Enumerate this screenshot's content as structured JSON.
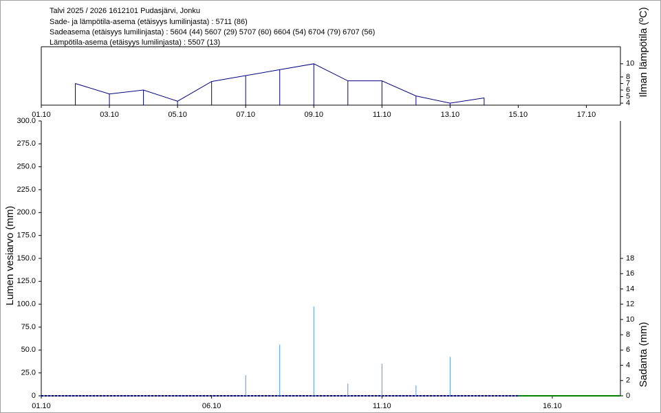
{
  "header": {
    "lines": [
      "Talvi 2025 / 2026 1612101 Pudasjärvi, Jonku",
      "Sade- ja lämpötila-asema (etäisyys lumilinjasta) :  5711 (86)",
      "Sadeasema (etäisyys lumilinjasta) :  5604 (44) 5607 (29) 5707 (60) 6604 (54) 6704 (79) 6707 (56)",
      "Lämpötila-asema (etäisyys lumilinjasta) :  5507 (13)"
    ]
  },
  "chart_data": [
    {
      "type": "line",
      "y_label": "Ilman lämpötila (ºC)",
      "color": "#000080",
      "x": [
        2,
        3,
        4,
        5,
        6,
        7,
        8,
        9,
        10,
        11,
        12,
        13,
        14
      ],
      "values": [
        7.0,
        5.4,
        6.0,
        4.3,
        7.3,
        8.2,
        9.1,
        10.0,
        7.4,
        7.4,
        5.1,
        4.0,
        4.8
      ],
      "xlim": [
        1,
        18
      ],
      "ylim": [
        3.7,
        12.6
      ],
      "xticks": [
        {
          "value": 1,
          "label": "01.10"
        },
        {
          "value": 3,
          "label": "03.10"
        },
        {
          "value": 5,
          "label": "05.10"
        },
        {
          "value": 7,
          "label": "07.10"
        },
        {
          "value": 9,
          "label": "09.10"
        },
        {
          "value": 11,
          "label": "11.10"
        },
        {
          "value": 13,
          "label": "13.10"
        },
        {
          "value": 15,
          "label": "15.10"
        },
        {
          "value": 17,
          "label": "17.10"
        }
      ],
      "yticks": [
        4,
        5,
        6,
        7,
        8,
        10
      ]
    },
    {
      "type": "bar",
      "y_label": "Lumen vesiarvo (mm)",
      "y2_label": "Sadanta (mm)",
      "series": [
        {
          "type": "line",
          "dashed": true,
          "color": "#000080",
          "x": [
            1,
            15
          ],
          "values": [
            0,
            0
          ]
        },
        {
          "type": "line",
          "color": "#008000",
          "x": [
            15,
            18
          ],
          "values": [
            0,
            0
          ]
        },
        {
          "type": "bar",
          "axis": "y2",
          "color": "#4a98e0",
          "x": [
            7,
            8,
            9,
            10,
            11,
            12,
            13
          ],
          "values": [
            2.7,
            6.7,
            11.7,
            1.6,
            4.2,
            1.35,
            5.1
          ]
        }
      ],
      "xlim": [
        1,
        18
      ],
      "ylim": [
        0,
        300
      ],
      "y2lim": [
        0,
        36
      ],
      "xticks": [
        {
          "value": 1,
          "label": "01.10"
        },
        {
          "value": 6,
          "label": "06.10"
        },
        {
          "value": 11,
          "label": "11.10"
        },
        {
          "value": 16,
          "label": "16.10"
        }
      ],
      "yticks": [
        0,
        {
          "value": 25,
          "label": "25.0"
        },
        {
          "value": 50,
          "label": "50.0"
        },
        {
          "value": 75,
          "label": "75.0"
        },
        {
          "value": 100,
          "label": "100.0"
        },
        {
          "value": 125,
          "label": "125.0"
        },
        {
          "value": 150,
          "label": "150.0"
        },
        {
          "value": 175,
          "label": "175.0"
        },
        {
          "value": 200,
          "label": "200.0"
        },
        {
          "value": 225,
          "label": "225.0"
        },
        {
          "value": 250,
          "label": "250.0"
        },
        {
          "value": 275,
          "label": "275.0"
        },
        {
          "value": 300,
          "label": "300.0"
        }
      ],
      "y2ticks": [
        0,
        2,
        4,
        6,
        8,
        10,
        12,
        14,
        16,
        18
      ]
    }
  ]
}
